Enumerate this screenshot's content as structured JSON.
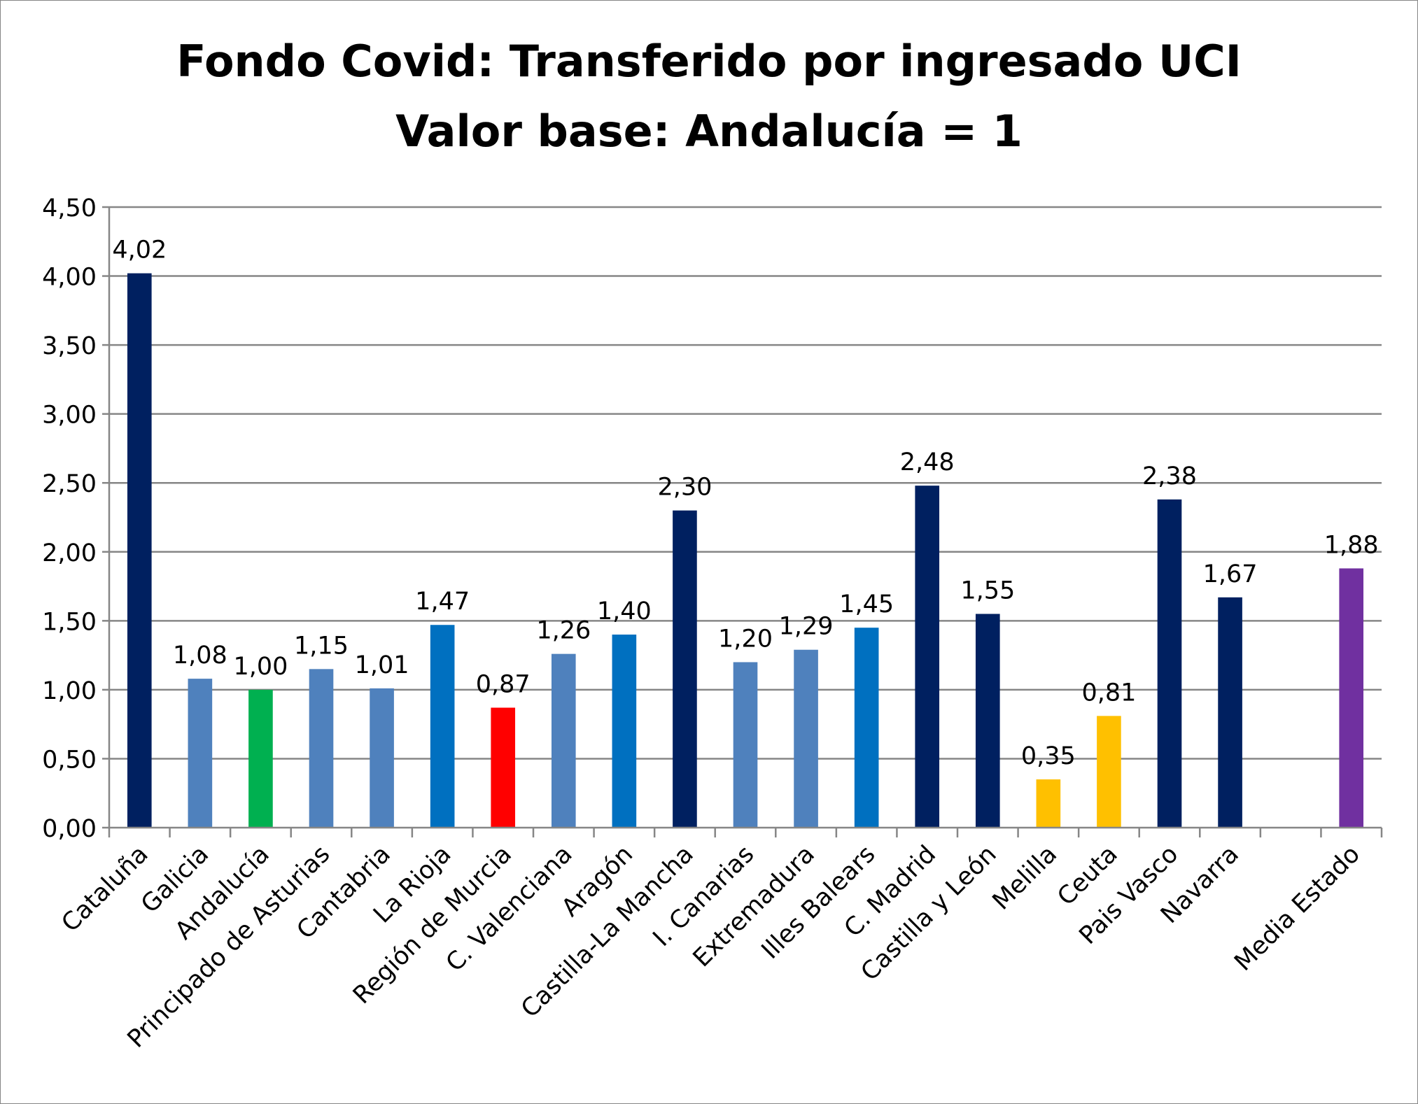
{
  "chart_data": {
    "type": "bar",
    "title": "Fondo Covid: Transferido por ingresado UCI",
    "subtitle": "Valor base: Andalucía = 1",
    "xlabel": "",
    "ylabel": "",
    "ylim": [
      0,
      4.5
    ],
    "yticks": [
      "0,00",
      "0,50",
      "1,00",
      "1,50",
      "2,00",
      "2,50",
      "3,00",
      "3,50",
      "4,00",
      "4,50"
    ],
    "grid": true,
    "categories": [
      "Cataluña",
      "Galicia",
      "Andalucía",
      "Principado de Asturias",
      "Cantabria",
      "La Rioja",
      "Región de Murcia",
      "C. Valenciana",
      "Aragón",
      "Castilla-La Mancha",
      "I. Canarias",
      "Extremadura",
      "Illes Balears",
      "C. Madrid",
      "Castilla y León",
      "Melilla",
      "Ceuta",
      "Pais Vasco",
      "Navarra",
      "",
      "Media Estado"
    ],
    "values": [
      4.02,
      1.08,
      1.0,
      1.15,
      1.01,
      1.47,
      0.87,
      1.26,
      1.4,
      2.3,
      1.2,
      1.29,
      1.45,
      2.48,
      1.55,
      0.35,
      0.81,
      2.38,
      1.67,
      null,
      1.88
    ],
    "data_labels": [
      "4,02",
      "1,08",
      "1,00",
      "1,15",
      "1,01",
      "1,47",
      "0,87",
      "1,26",
      "1,40",
      "2,30",
      "1,20",
      "1,29",
      "1,45",
      "2,48",
      "1,55",
      "0,35",
      "0,81",
      "2,38",
      "1,67",
      "",
      "1,88"
    ],
    "colors": [
      "#002060",
      "#4F81BD",
      "#00B050",
      "#4F81BD",
      "#4F81BD",
      "#0070C0",
      "#FF0000",
      "#4F81BD",
      "#0070C0",
      "#002060",
      "#4F81BD",
      "#4F81BD",
      "#0070C0",
      "#002060",
      "#002060",
      "#FFC000",
      "#FFC000",
      "#002060",
      "#002060",
      "#FFFFFF",
      "#7030A0"
    ]
  }
}
